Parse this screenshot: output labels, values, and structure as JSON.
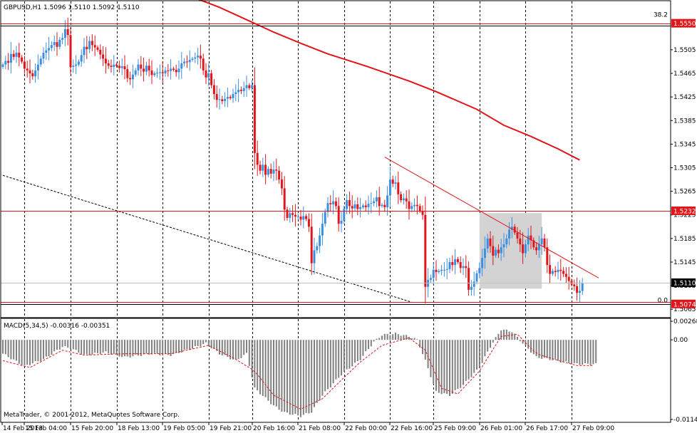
{
  "chart_data": {
    "type": "candlestick",
    "symbol_header": "GBPUSD,H1  1.5096 1.5110 1.5092 1.5110",
    "colors": {
      "up": "#3b8fe0",
      "down": "#e0161b",
      "ma": "#e0161b",
      "level": "#e0161b",
      "trend": "#e0161b",
      "grid": "#000000",
      "histogram": "#808080",
      "signal": "#e0161b",
      "box": "#d3d3d3"
    },
    "price_axis": {
      "ylim": [
        1.5052,
        1.5587
      ],
      "ticks": [
        "1.5505",
        "1.5465",
        "1.5425",
        "1.5385",
        "1.5345",
        "1.5305",
        "1.5265",
        "1.5225",
        "1.5185",
        "1.5145",
        "1.5105",
        "1.5065"
      ],
      "tick_values": [
        1.5505,
        1.5465,
        1.5425,
        1.5385,
        1.5345,
        1.5305,
        1.5265,
        1.5225,
        1.5185,
        1.5145,
        1.5105,
        1.5065
      ]
    },
    "levels": [
      {
        "value": 1.555,
        "label": "1.5550"
      },
      {
        "value": 1.5232,
        "label": "1.5232"
      },
      {
        "value": 1.5074,
        "label": "1.5074"
      }
    ],
    "current_price": {
      "value": 1.511,
      "label": "1.5110"
    },
    "fib_labels": {
      "top": "38.2",
      "bottom": "0.0",
      "top_value": 1.5561,
      "bottom_value": 1.5077
    },
    "time_labels": [
      "14 Feb 2013",
      "15 Feb 04:00",
      "15 Feb 20:00",
      "18 Feb 13:00",
      "19 Feb 05:00",
      "19 Feb 21:00",
      "20 Feb 16:00",
      "21 Feb 08:00",
      "22 Feb 00:00",
      "22 Feb 16:00",
      "25 Feb 09:00",
      "26 Feb 01:00",
      "26 Feb 17:00",
      "27 Feb 09:00"
    ],
    "grid_bar_positions": [
      8,
      25,
      42,
      59,
      76,
      92,
      109,
      126,
      143,
      159,
      176,
      193,
      210
    ],
    "n_bars": 220,
    "closes": [
      1.548,
      1.5486,
      1.5483,
      1.5498,
      1.5493,
      1.55,
      1.5492,
      1.5485,
      1.5473,
      1.547,
      1.5465,
      1.546,
      1.547,
      1.548,
      1.549,
      1.55,
      1.5504,
      1.5508,
      1.5513,
      1.5518,
      1.551,
      1.5522,
      1.5525,
      1.554,
      1.553,
      1.5476,
      1.5478,
      1.548,
      1.5485,
      1.5496,
      1.551,
      1.5506,
      1.552,
      1.5513,
      1.5509,
      1.5505,
      1.5497,
      1.549,
      1.5482,
      1.5478,
      1.5476,
      1.548,
      1.5478,
      1.5474,
      1.5477,
      1.5472,
      1.5457,
      1.5455,
      1.5463,
      1.547,
      1.548,
      1.5473,
      1.5468,
      1.5478,
      1.547,
      1.5462,
      1.5465,
      1.5466,
      1.5467,
      1.5465,
      1.547,
      1.5469,
      1.5473,
      1.5471,
      1.5467,
      1.5473,
      1.5482,
      1.5485,
      1.5484,
      1.5488,
      1.549,
      1.5492,
      1.5495,
      1.549,
      1.547,
      1.5458,
      1.5465,
      1.5445,
      1.543,
      1.542,
      1.5421,
      1.5418,
      1.5422,
      1.5425,
      1.5423,
      1.543,
      1.5433,
      1.5437,
      1.5435,
      1.544,
      1.5445,
      1.544,
      1.5445,
      1.533,
      1.531,
      1.53,
      1.531,
      1.5293,
      1.5303,
      1.5295,
      1.5302,
      1.53,
      1.5285,
      1.527,
      1.5234,
      1.522,
      1.5228,
      1.5225,
      1.5222,
      1.5222,
      1.5217,
      1.5223,
      1.5218,
      1.5205,
      1.5143,
      1.5165,
      1.5172,
      1.519,
      1.521,
      1.523,
      1.5245,
      1.5243,
      1.5248,
      1.524,
      1.521,
      1.5215,
      1.5235,
      1.525,
      1.524,
      1.5236,
      1.5243,
      1.5235,
      1.5238,
      1.5241,
      1.5238,
      1.5244,
      1.5245,
      1.5248,
      1.5255,
      1.524,
      1.5242,
      1.5238,
      1.5258,
      1.5285,
      1.5278,
      1.528,
      1.526,
      1.525,
      1.5253,
      1.5248,
      1.5235,
      1.524,
      1.5242,
      1.524,
      1.5232,
      1.5225,
      1.5103,
      1.5115,
      1.5118,
      1.5132,
      1.5128,
      1.513,
      1.5132,
      1.5132,
      1.5133,
      1.5145,
      1.514,
      1.515,
      1.5145,
      1.5135,
      1.5138,
      1.5135,
      1.5098,
      1.5103,
      1.5112,
      1.5126,
      1.5135,
      1.5152,
      1.5168,
      1.5185,
      1.5172,
      1.5156,
      1.5166,
      1.516,
      1.517,
      1.5175,
      1.5185,
      1.52,
      1.5205,
      1.5195,
      1.5185,
      1.5175,
      1.516,
      1.5175,
      1.519,
      1.5182,
      1.517,
      1.5165,
      1.5175,
      1.5185,
      1.517,
      1.514,
      1.5125,
      1.513,
      1.5128,
      1.5132,
      1.513,
      1.5125,
      1.512,
      1.5113,
      1.5107,
      1.5104,
      1.5093,
      1.5096,
      1.511
    ],
    "ma_points": [
      [
        60,
        1.5612
      ],
      [
        80,
        1.5577
      ],
      [
        90,
        1.5556
      ],
      [
        100,
        1.5535
      ],
      [
        110,
        1.5516
      ],
      [
        120,
        1.5498
      ],
      [
        135,
        1.5476
      ],
      [
        150,
        1.5452
      ],
      [
        160,
        1.5434
      ],
      [
        175,
        1.5404
      ],
      [
        185,
        1.5377
      ],
      [
        195,
        1.5358
      ],
      [
        205,
        1.5337
      ],
      [
        213,
        1.5318
      ]
    ],
    "trendlines": [
      {
        "style": "solid",
        "from": [
          141,
          1.5323
        ],
        "to": [
          220,
          1.5118
        ]
      },
      {
        "style": "dashed",
        "from": [
          0,
          1.5292
        ],
        "to": [
          151,
          1.5077
        ]
      }
    ],
    "highlight_box": {
      "from_bar": 176,
      "to_bar": 199,
      "top": 1.5228,
      "bottom": 1.51
    },
    "macd": {
      "label": "MACD(5,34,5) -0.00316 -0.00351",
      "ylim": [
        -0.0118,
        0.003
      ],
      "ticks": [
        "0.00268",
        "0.00",
        "-0.01148"
      ],
      "tick_values": [
        0.00268,
        0.0,
        -0.01148
      ],
      "histogram_anchors": [
        [
          0,
          -0.002
        ],
        [
          8,
          -0.0038
        ],
        [
          15,
          -0.0028
        ],
        [
          22,
          -0.001
        ],
        [
          25,
          -0.0012
        ],
        [
          30,
          -0.0022
        ],
        [
          38,
          -0.0018
        ],
        [
          45,
          -0.0025
        ],
        [
          55,
          -0.002
        ],
        [
          62,
          -0.0022
        ],
        [
          70,
          -0.0012
        ],
        [
          75,
          -0.0005
        ],
        [
          80,
          -0.002
        ],
        [
          86,
          -0.003
        ],
        [
          90,
          -0.002
        ],
        [
          93,
          -0.007
        ],
        [
          100,
          -0.0095
        ],
        [
          104,
          -0.0105
        ],
        [
          110,
          -0.011
        ],
        [
          114,
          -0.0104
        ],
        [
          118,
          -0.008
        ],
        [
          125,
          -0.005
        ],
        [
          132,
          -0.0028
        ],
        [
          137,
          -0.0003
        ],
        [
          140,
          0.0007
        ],
        [
          145,
          0.0009
        ],
        [
          150,
          0.0005
        ],
        [
          153,
          0.0
        ],
        [
          156,
          -0.003
        ],
        [
          160,
          -0.0075
        ],
        [
          165,
          -0.008
        ],
        [
          170,
          -0.0065
        ],
        [
          176,
          -0.004
        ],
        [
          180,
          -0.001
        ],
        [
          184,
          0.0015
        ],
        [
          188,
          0.0012
        ],
        [
          192,
          -0.0005
        ],
        [
          197,
          -0.0025
        ],
        [
          202,
          -0.0028
        ],
        [
          207,
          -0.0032
        ],
        [
          212,
          -0.0035
        ]
      ],
      "signal_anchors": [
        [
          0,
          -0.003
        ],
        [
          10,
          -0.004
        ],
        [
          22,
          -0.0015
        ],
        [
          30,
          -0.0022
        ],
        [
          45,
          -0.002
        ],
        [
          62,
          -0.002
        ],
        [
          76,
          -0.0008
        ],
        [
          86,
          -0.0028
        ],
        [
          93,
          -0.0045
        ],
        [
          100,
          -0.008
        ],
        [
          110,
          -0.01
        ],
        [
          118,
          -0.0085
        ],
        [
          125,
          -0.0058
        ],
        [
          132,
          -0.0032
        ],
        [
          140,
          -0.0008
        ],
        [
          150,
          0.0003
        ],
        [
          156,
          -0.0015
        ],
        [
          162,
          -0.007
        ],
        [
          168,
          -0.0078
        ],
        [
          176,
          -0.0045
        ],
        [
          184,
          0.0005
        ],
        [
          190,
          0.0008
        ],
        [
          197,
          -0.002
        ],
        [
          207,
          -0.0032
        ],
        [
          212,
          -0.0037
        ]
      ]
    }
  },
  "watermark": "MetaTrader, © 2001-2012, MetaQuotes Software Corp."
}
